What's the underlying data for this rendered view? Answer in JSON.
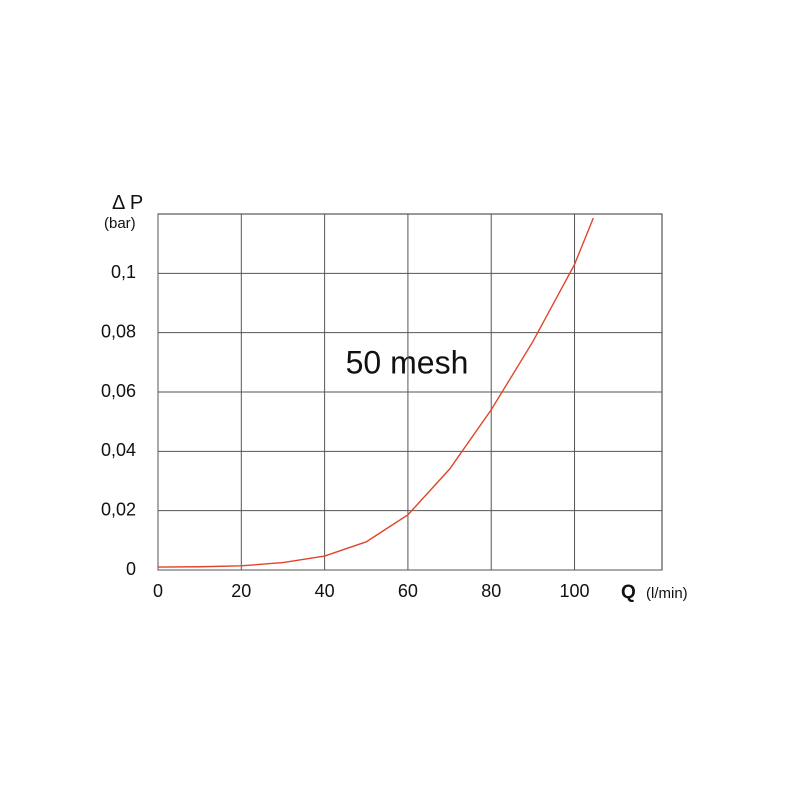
{
  "chart_data": {
    "type": "line",
    "y_label": "Δ P",
    "y_unit": "(bar)",
    "x_label": "Q",
    "x_unit": "(l/min)",
    "annotation": "50 mesh",
    "x": [
      0,
      10,
      20,
      30,
      40,
      50,
      60,
      70,
      80,
      90,
      100,
      104.5
    ],
    "values": [
      0.001,
      0.0011,
      0.0014,
      0.0025,
      0.0047,
      0.0095,
      0.0186,
      0.034,
      0.054,
      0.077,
      0.103,
      0.1186
    ],
    "color": "#e0452a",
    "xlim": [
      0,
      121
    ],
    "xticks": [
      0,
      20,
      40,
      60,
      80,
      100
    ],
    "ylim": [
      0,
      0.12
    ],
    "yticks": [
      0,
      {
        "value": 0.02,
        "label": "0,02"
      },
      {
        "value": 0.04,
        "label": "0,04"
      },
      {
        "value": 0.06,
        "label": "0,06"
      },
      {
        "value": 0.08,
        "label": "0,08"
      },
      {
        "value": 0.1,
        "label": "0,1"
      }
    ],
    "grid": true
  }
}
